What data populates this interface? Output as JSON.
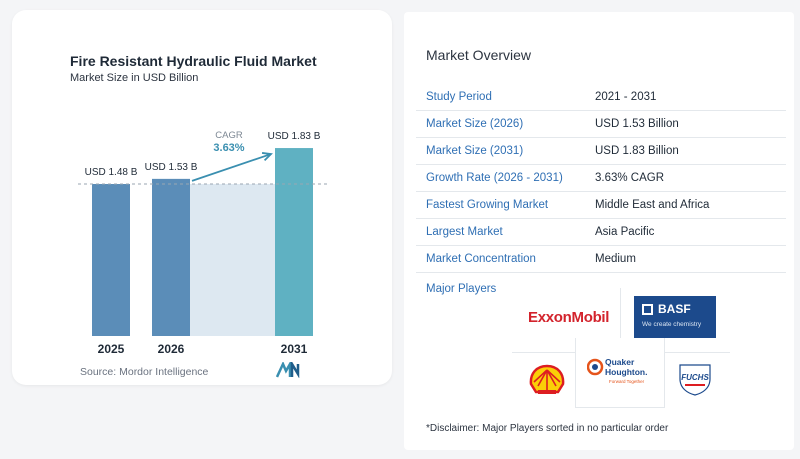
{
  "chart_data": {
    "type": "bar",
    "title": "Fire Resistant Hydraulic Fluid Market",
    "subtitle": "Market Size in USD Billion",
    "categories": [
      "2025",
      "2026",
      "2031"
    ],
    "values": [
      1.48,
      1.53,
      1.83
    ],
    "data_labels": [
      "USD 1.48 B",
      "USD 1.53 B",
      "USD 1.83 B"
    ],
    "cagr_label": "CAGR",
    "cagr_value": "3.63%",
    "bar_color": "#5b8db8",
    "bar_color_last": "#5fb1c2",
    "band_color": "#dde8f1",
    "grid": false,
    "legend": "none"
  },
  "source": "Source:  Mordor Intelligence",
  "overview": {
    "title": "Market Overview",
    "rows": [
      {
        "label": "Study Period",
        "value": "2021 - 2031"
      },
      {
        "label": "Market Size (2026)",
        "value": "USD 1.53 Billion"
      },
      {
        "label": "Market Size (2031)",
        "value": "USD 1.83 Billion"
      },
      {
        "label": "Growth Rate (2026 - 2031)",
        "value": "3.63% CAGR"
      },
      {
        "label": "Fastest Growing Market",
        "value": "Middle East and Africa"
      },
      {
        "label": "Largest Market",
        "value": "Asia Pacific"
      },
      {
        "label": "Market Concentration",
        "value": "Medium"
      }
    ]
  },
  "players": {
    "title": "Major Players",
    "exxon": "ExxonMobil",
    "basf_name": "BASF",
    "basf_tag": "We create chemistry",
    "quaker_line1": "Quaker",
    "quaker_line2": "Houghton.",
    "quaker_tag": "Forward Together",
    "fuchs": "FUCHS"
  },
  "disclaimer": "*Disclaimer: Major Players sorted in no particular order",
  "colors": {
    "accent_blue": "#2f6fb4",
    "cagr_teal": "#3a8fb0",
    "shell_red": "#dd1d21",
    "shell_yellow": "#fbce07",
    "fuchs_blue": "#1c4a8c"
  }
}
